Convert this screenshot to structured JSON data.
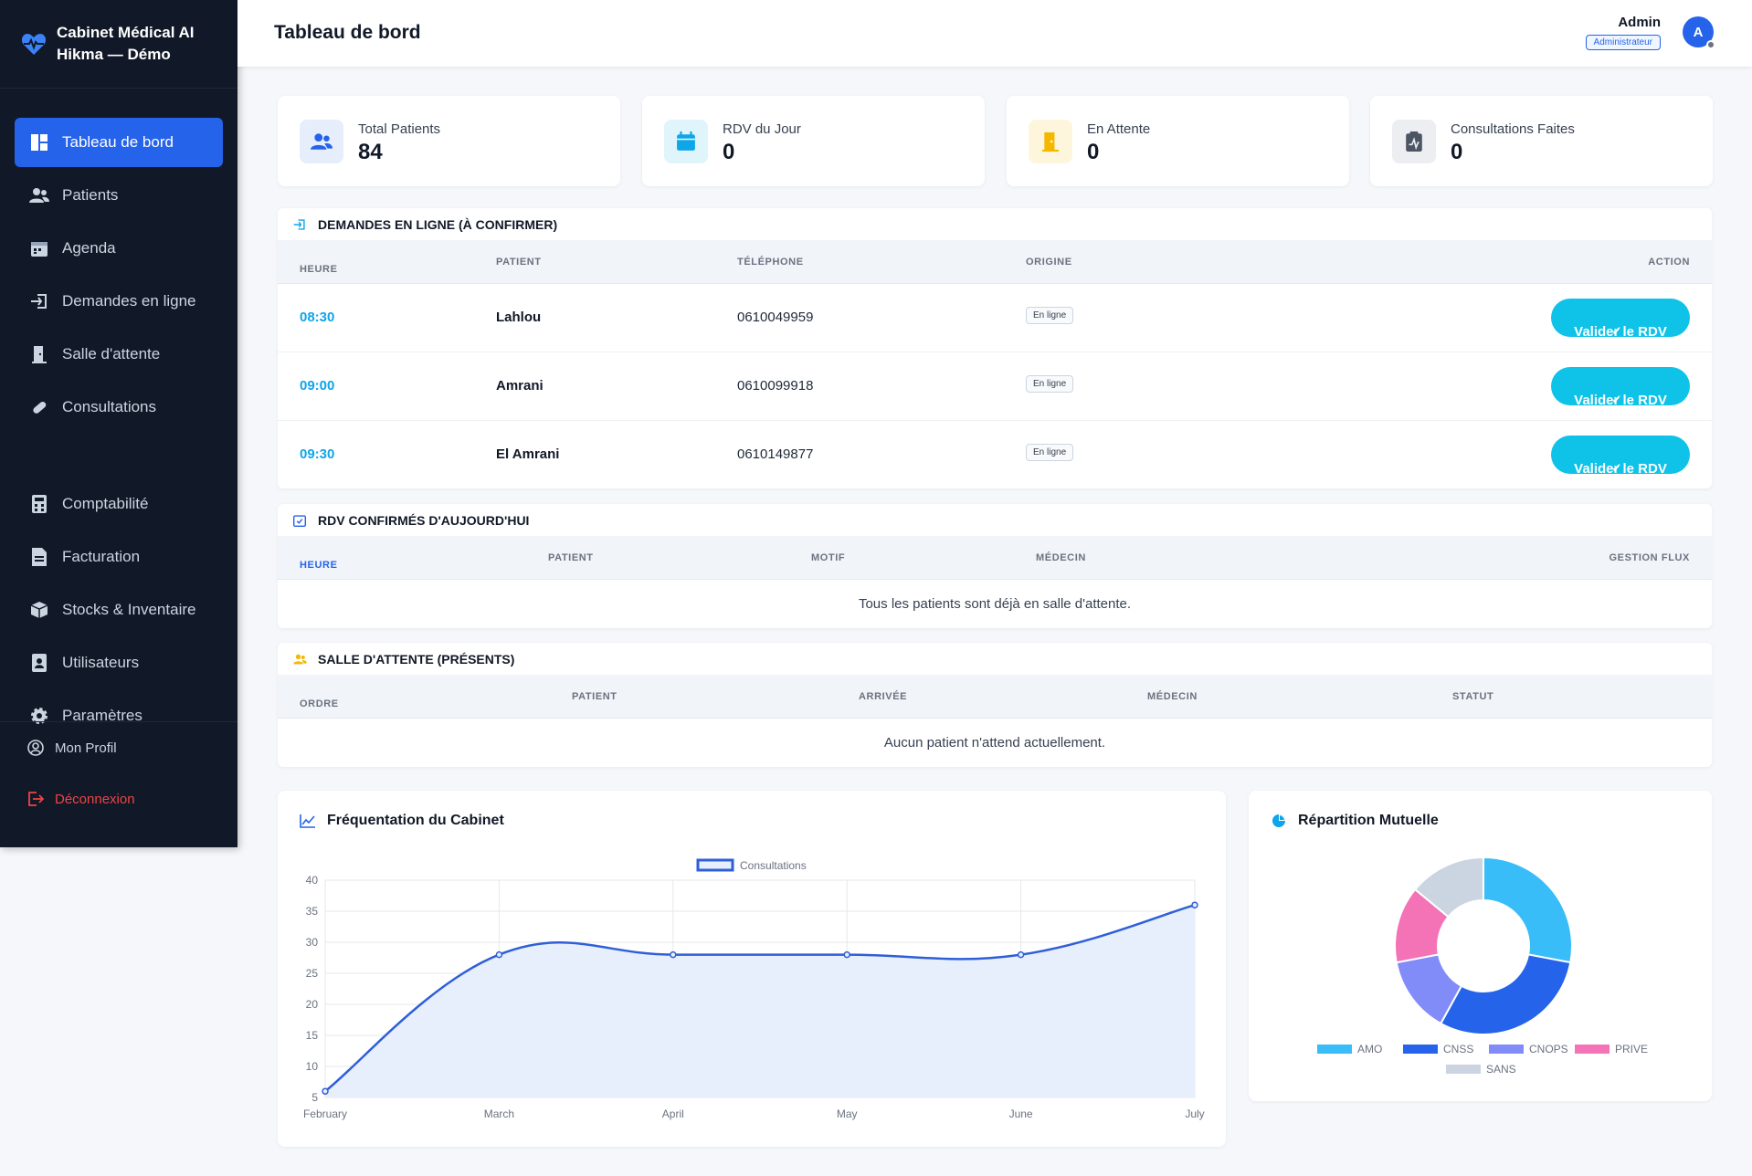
{
  "brand": {
    "line1": "Cabinet Médical AI",
    "line2": "Hikma — Démo"
  },
  "nav": [
    {
      "label": "Tableau de bord",
      "icon": "dashboard-icon",
      "active": true
    },
    {
      "label": "Patients",
      "icon": "users-icon"
    },
    {
      "label": "Agenda",
      "icon": "calendar-icon"
    },
    {
      "label": "Demandes en ligne",
      "icon": "sign-in-icon"
    },
    {
      "label": "Salle d'attente",
      "icon": "door-icon"
    },
    {
      "label": "Consultations",
      "icon": "pills-icon"
    }
  ],
  "nav_admin": [
    {
      "label": "Comptabilité",
      "icon": "calculator-icon"
    },
    {
      "label": "Facturation",
      "icon": "invoice-icon"
    },
    {
      "label": "Stocks & Inventaire",
      "icon": "box-icon"
    },
    {
      "label": "Utilisateurs",
      "icon": "user-badge-icon"
    },
    {
      "label": "Paramètres",
      "icon": "gear-icon"
    }
  ],
  "footer": {
    "profile": "Mon Profil",
    "logout": "Déconnexion"
  },
  "topbar": {
    "title": "Tableau de bord",
    "user": "Admin",
    "role": "Administrateur",
    "avatar": "A"
  },
  "stats": [
    {
      "label": "Total Patients",
      "value": "84",
      "icon": "users-icon",
      "bg": "#e6eefc",
      "fg": "#2563eb"
    },
    {
      "label": "RDV du Jour",
      "value": "0",
      "icon": "calendar-icon",
      "bg": "#e0f5fb",
      "fg": "#0ea5e9"
    },
    {
      "label": "En Attente",
      "value": "0",
      "icon": "door-icon",
      "bg": "#fef6dc",
      "fg": "#f5b800"
    },
    {
      "label": "Consultations Faites",
      "value": "0",
      "icon": "clipboard-icon",
      "bg": "#eceef1",
      "fg": "#4b5563"
    }
  ],
  "online": {
    "title": "DEMANDES EN LIGNE (À CONFIRMER)",
    "headers": {
      "time": "HEURE",
      "patient": "PATIENT",
      "phone": "TÉLÉPHONE",
      "origin": "ORIGINE",
      "action": "ACTION"
    },
    "rows": [
      {
        "time": "08:30",
        "patient": "Lahlou",
        "phone": "0610049959",
        "origin": "En ligne"
      },
      {
        "time": "09:00",
        "patient": "Amrani",
        "phone": "0610099918",
        "origin": "En ligne"
      },
      {
        "time": "09:30",
        "patient": "El Amrani",
        "phone": "0610149877",
        "origin": "En ligne"
      }
    ],
    "button": "Valider le RDV"
  },
  "confirmed": {
    "title": "RDV CONFIRMÉS D'AUJOURD'HUI",
    "headers": {
      "time": "HEURE",
      "patient": "PATIENT",
      "motif": "MOTIF",
      "doctor": "MÉDECIN",
      "flow": "GESTION FLUX"
    },
    "empty": "Tous les patients sont déjà en salle d'attente."
  },
  "waiting": {
    "title": "SALLE D'ATTENTE (PRÉSENTS)",
    "headers": {
      "order": "ORDRE",
      "patient": "PATIENT",
      "arrival": "ARRIVÉE",
      "doctor": "MÉDECIN",
      "status": "STATUT"
    },
    "empty": "Aucun patient n'attend actuellement."
  },
  "chart_data": [
    {
      "type": "line",
      "title": "Fréquentation du Cabinet",
      "categories": [
        "February",
        "March",
        "April",
        "May",
        "June",
        "July"
      ],
      "series": [
        {
          "name": "Consultations",
          "values": [
            6,
            28,
            28,
            28,
            28,
            36
          ]
        }
      ],
      "ylim": [
        5,
        40
      ],
      "yticks": [
        5,
        10,
        15,
        20,
        25,
        30,
        35,
        40
      ],
      "grid": true,
      "legend": "top",
      "color": "#2f5fd8"
    },
    {
      "type": "pie",
      "title": "Répartition Mutuelle",
      "labels": [
        "AMO",
        "CNSS",
        "CNOPS",
        "PRIVE",
        "SANS"
      ],
      "values": [
        28,
        30,
        14,
        14,
        14
      ],
      "colors": [
        "#38bdf8",
        "#2563eb",
        "#818cf8",
        "#f472b6",
        "#cbd5e1"
      ],
      "legend": "bottom"
    }
  ]
}
